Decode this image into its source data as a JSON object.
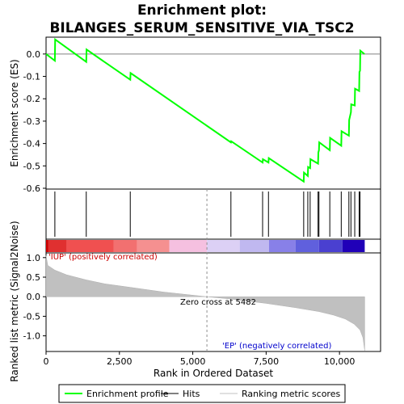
{
  "chart_data": {
    "type": "line",
    "title_line1": "Enrichment plot:",
    "title_line2": "BILANGES_SERUM_SENSITIVE_VIA_TSC2",
    "ylabel_top": "Enrichment score (ES)",
    "ylabel_bottom": "Ranked list metric (Signal2Noise)",
    "xlabel": "Rank in Ordered Dataset",
    "xlim": [
      0,
      11400
    ],
    "es_ylim": [
      -0.6,
      0.05
    ],
    "metric_ylim": [
      -1.4,
      1.12
    ],
    "x_ticks": [
      0,
      2500,
      5000,
      7500,
      10000
    ],
    "x_tick_labels": [
      "0",
      "2,500",
      "5,000",
      "7,500",
      "10,000"
    ],
    "es_ticks": [
      0.0,
      -0.1,
      -0.2,
      -0.3,
      -0.4,
      -0.5,
      -0.6
    ],
    "es_tick_labels": [
      "0.0",
      "-0.1",
      "-0.2",
      "-0.3",
      "-0.4",
      "-0.5",
      "-0.6"
    ],
    "metric_ticks": [
      1.0,
      0.5,
      0.0,
      -0.5,
      -1.0
    ],
    "metric_tick_labels": [
      "1.0",
      "0.5",
      "0.0",
      "-0.5",
      "-1.0"
    ],
    "series": [
      {
        "name": "Enrichment profile",
        "color": "#00ff00",
        "x": [
          0,
          300,
          310,
          1370,
          1380,
          2870,
          2880,
          6300,
          6310,
          7380,
          7390,
          7580,
          7590,
          8780,
          8790,
          8920,
          8930,
          9000,
          9010,
          9270,
          9280,
          9300,
          9310,
          9670,
          9680,
          10060,
          10070,
          10320,
          10330,
          10390,
          10400,
          10520,
          10530,
          10670,
          10680,
          10700,
          10710,
          10850
        ],
        "y": [
          0.0,
          -0.03,
          0.065,
          -0.035,
          0.02,
          -0.115,
          -0.085,
          -0.395,
          -0.39,
          -0.485,
          -0.47,
          -0.485,
          -0.465,
          -0.57,
          -0.53,
          -0.545,
          -0.505,
          -0.51,
          -0.47,
          -0.49,
          -0.44,
          -0.43,
          -0.395,
          -0.43,
          -0.375,
          -0.41,
          -0.345,
          -0.365,
          -0.295,
          -0.26,
          -0.225,
          -0.23,
          -0.155,
          -0.165,
          -0.08,
          -0.075,
          0.015,
          0.0
        ]
      }
    ],
    "hits": [
      300,
      1370,
      2870,
      6300,
      7380,
      7580,
      8780,
      8920,
      9000,
      9270,
      9300,
      9670,
      10060,
      10320,
      10390,
      10520,
      10670,
      10700
    ],
    "metric_curve": {
      "x": [
        0,
        60,
        300,
        700,
        1370,
        2000,
        2870,
        4000,
        5482,
        6300,
        7500,
        8500,
        9300,
        9800,
        10200,
        10500,
        10700,
        10800,
        10860
      ],
      "y": [
        1.05,
        0.8,
        0.68,
        0.56,
        0.43,
        0.33,
        0.24,
        0.12,
        0.0,
        -0.06,
        -0.17,
        -0.28,
        -0.38,
        -0.47,
        -0.57,
        -0.7,
        -0.85,
        -1.05,
        -1.38
      ]
    },
    "colorbar": [
      {
        "from": 0,
        "to": 80,
        "color": "#cc0000"
      },
      {
        "from": 80,
        "to": 700,
        "color": "#e03030"
      },
      {
        "from": 700,
        "to": 2300,
        "color": "#f05050"
      },
      {
        "from": 2300,
        "to": 3100,
        "color": "#f27070"
      },
      {
        "from": 3100,
        "to": 4200,
        "color": "#f59090"
      },
      {
        "from": 4200,
        "to": 5482,
        "color": "#f5c0e0"
      },
      {
        "from": 5482,
        "to": 6600,
        "color": "#dcd0f5"
      },
      {
        "from": 6600,
        "to": 7600,
        "color": "#c0b8f0"
      },
      {
        "from": 7600,
        "to": 8500,
        "color": "#8880e8"
      },
      {
        "from": 8500,
        "to": 9300,
        "color": "#6060dd"
      },
      {
        "from": 9300,
        "to": 10100,
        "color": "#4a40d0"
      },
      {
        "from": 10100,
        "to": 10860,
        "color": "#2000b8"
      }
    ],
    "zero_cross": 5482,
    "zero_cross_label": "Zero cross at 5482",
    "pos_label": "'IUP' (positively correlated)",
    "neg_label": "'EP' (negatively correlated)",
    "legend": [
      {
        "label": "Enrichment profile",
        "color": "#00ff00",
        "kind": "line"
      },
      {
        "label": "Hits",
        "color": "#000000",
        "kind": "line"
      },
      {
        "label": "Ranking metric scores",
        "color": "#c0c0c0",
        "kind": "line"
      }
    ]
  }
}
